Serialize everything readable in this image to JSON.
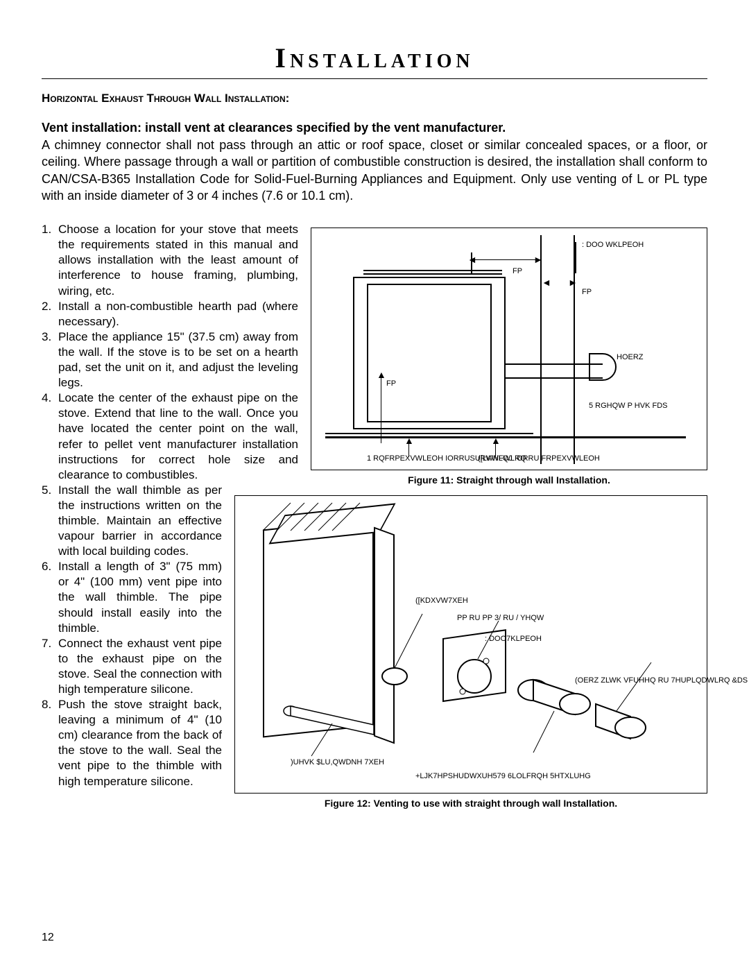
{
  "page": {
    "title": "Installation",
    "number": "12"
  },
  "section": {
    "heading": "Horizontal Exhaust Through Wall Installation:",
    "intro_bold": "Vent installation: install vent at clearances specified by the vent manufacturer.",
    "intro_body": "A chimney connector shall not pass through an attic or roof space, closet or similar concealed spaces, or a floor, or ceiling. Where passage through a wall or partition of combustible construction is desired, the installation shall conform to CAN/CSA-B365 Installation Code for Solid-Fuel-Burning Appliances and Equipment. Only use venting of L or PL type with an inside diameter of 3 or 4 inches (7.6 or 10.1 cm)."
  },
  "steps": [
    {
      "n": "1.",
      "text": "Choose a location for your stove that meets the requirements stated in this manual and allows installation with the least amount of interference to house framing, plumbing, wiring, etc."
    },
    {
      "n": "2.",
      "text": "Install a non-combustible hearth pad (where necessary)."
    },
    {
      "n": "3.",
      "text": "Place the appliance 15\" (37.5 cm) away from the wall. If the stove is to be set on a hearth pad, set the unit on it, and adjust the leveling legs."
    },
    {
      "n": "4.",
      "text": "Locate the center of the exhaust pipe on the stove. Extend that line to the wall. Once you have located the center point on the wall, refer to pellet vent manufacturer installation instructions for correct hole size and clearance to combustibles."
    },
    {
      "n": "5.",
      "text": "Install the wall thimble as per the instructions written on the thimble. Maintain an effective vapour barrier in accordance with local building codes.",
      "narrow": true
    },
    {
      "n": "6.",
      "text": "Install a length of 3\" (75 mm) or 4\" (100 mm) vent pipe into the wall thimble. The pipe should install easily into the thimble.",
      "narrow": true
    },
    {
      "n": "7.",
      "text": "Connect the exhaust vent pipe to the exhaust pipe on the stove. Seal the connection with high temperature silicone.",
      "narrow": true
    },
    {
      "n": "8.",
      "text": "Push the stove straight back, leaving a minimum of 4\" (10 cm) clearance from the back of the stove to the wall. Seal the vent pipe to the thimble with high temperature silicone.",
      "narrow": true
    }
  ],
  "figures": {
    "fig1": {
      "caption": "Figure 11: Straight through wall Installation.",
      "labels": {
        "wall_thimble": ": DOO\nWKLPEOH",
        "cm1": "FP",
        "cm2": "FP",
        "cm3": "FP",
        "elbow": "HOERZ",
        "rodent": "5 RGHQW\nP HVK FDS",
        "noncomb": "1 RQFRPEXVWLEOH\nIORRUSURWHFWLRQ",
        "existing": "([LVWLQJ IORRU\nFRPEXVWLEOH"
      }
    },
    "fig2": {
      "caption": "Figure 12: Venting to use with straight through wall Installation.",
      "labels": {
        "exhaust_tube": "([KDXVW7XEH",
        "vent_size": "PP RU         PP 3/ RU / YHQW",
        "wall_thimble": ": DOO7KLPEOH",
        "elbow_screen": "(OERZ ZLWK VFUHHQ RU\n7HUPLQDWLRQ &DS",
        "fresh_air": ")UHVK $LU,QWDNH 7XEH",
        "silicone": "+LJK7HPSHUDWXUH579\n6LOLFRQH 5HTXLUHG"
      }
    }
  }
}
